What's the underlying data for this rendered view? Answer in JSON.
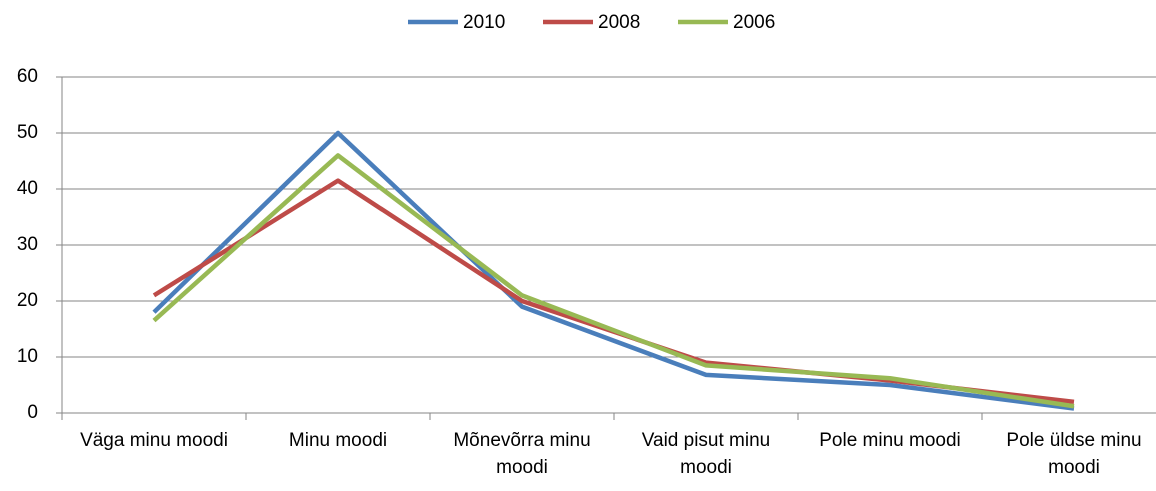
{
  "chart_data": {
    "type": "line",
    "categories": [
      "Väga minu moodi",
      "Minu moodi",
      "Mõnevõrra minu moodi",
      "Vaid pisut minu moodi",
      "Pole minu moodi",
      "Pole üldse minu moodi"
    ],
    "series": [
      {
        "name": "2010",
        "color": "#4a7ebb",
        "values": [
          18,
          50,
          19,
          6.8,
          5,
          0.8
        ]
      },
      {
        "name": "2008",
        "color": "#be4b48",
        "values": [
          21,
          41.5,
          20,
          9,
          5.8,
          2
        ]
      },
      {
        "name": "2006",
        "color": "#98b954",
        "values": [
          16.5,
          46,
          21,
          8.5,
          6.2,
          1.2
        ]
      }
    ],
    "ylim": [
      0,
      60
    ],
    "yticks": [
      0,
      10,
      20,
      30,
      40,
      50,
      60
    ],
    "grid": true,
    "legend": "top"
  }
}
